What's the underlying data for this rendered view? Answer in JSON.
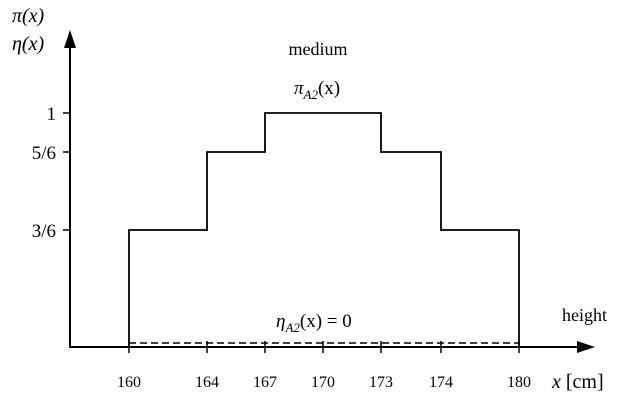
{
  "chart_data": {
    "type": "line",
    "title": "medium",
    "y_axis_label_line1": "π(x)",
    "y_axis_label_line2": "η(x)",
    "x_axis_word": "height",
    "x_axis_label": "x [cm]",
    "y_ticks": [
      {
        "value": 1,
        "label": "1"
      },
      {
        "value": 0.8333333333,
        "label": "5/6"
      },
      {
        "value": 0.5,
        "label": "3/6"
      }
    ],
    "x_ticks": [
      {
        "value": 160,
        "label": "160"
      },
      {
        "value": 164,
        "label": "164"
      },
      {
        "value": 167,
        "label": "167"
      },
      {
        "value": 170,
        "label": "170"
      },
      {
        "value": 173,
        "label": "173"
      },
      {
        "value": 174,
        "label": "174"
      },
      {
        "value": 180,
        "label": "180"
      }
    ],
    "series": [
      {
        "name": "π_A2(x)",
        "style": "solid",
        "step_points": [
          {
            "x": 160,
            "y": 0.5
          },
          {
            "x": 164,
            "y": 0.8333333333
          },
          {
            "x": 167,
            "y": 1
          },
          {
            "x": 173,
            "y": 0.8333333333
          },
          {
            "x": 174,
            "y": 0.5
          },
          {
            "x": 180,
            "y": 0.5
          }
        ],
        "label_main": "π",
        "label_sub": "A2",
        "label_tail": "(x)"
      },
      {
        "name": "η_A2(x) = 0",
        "style": "dashed",
        "points": [
          {
            "x": 160,
            "y": 0
          },
          {
            "x": 180,
            "y": 0
          }
        ],
        "label_main": "η",
        "label_sub": "A2",
        "label_tail": "(x) = 0"
      }
    ],
    "colors": {
      "ink": "#000000"
    }
  }
}
